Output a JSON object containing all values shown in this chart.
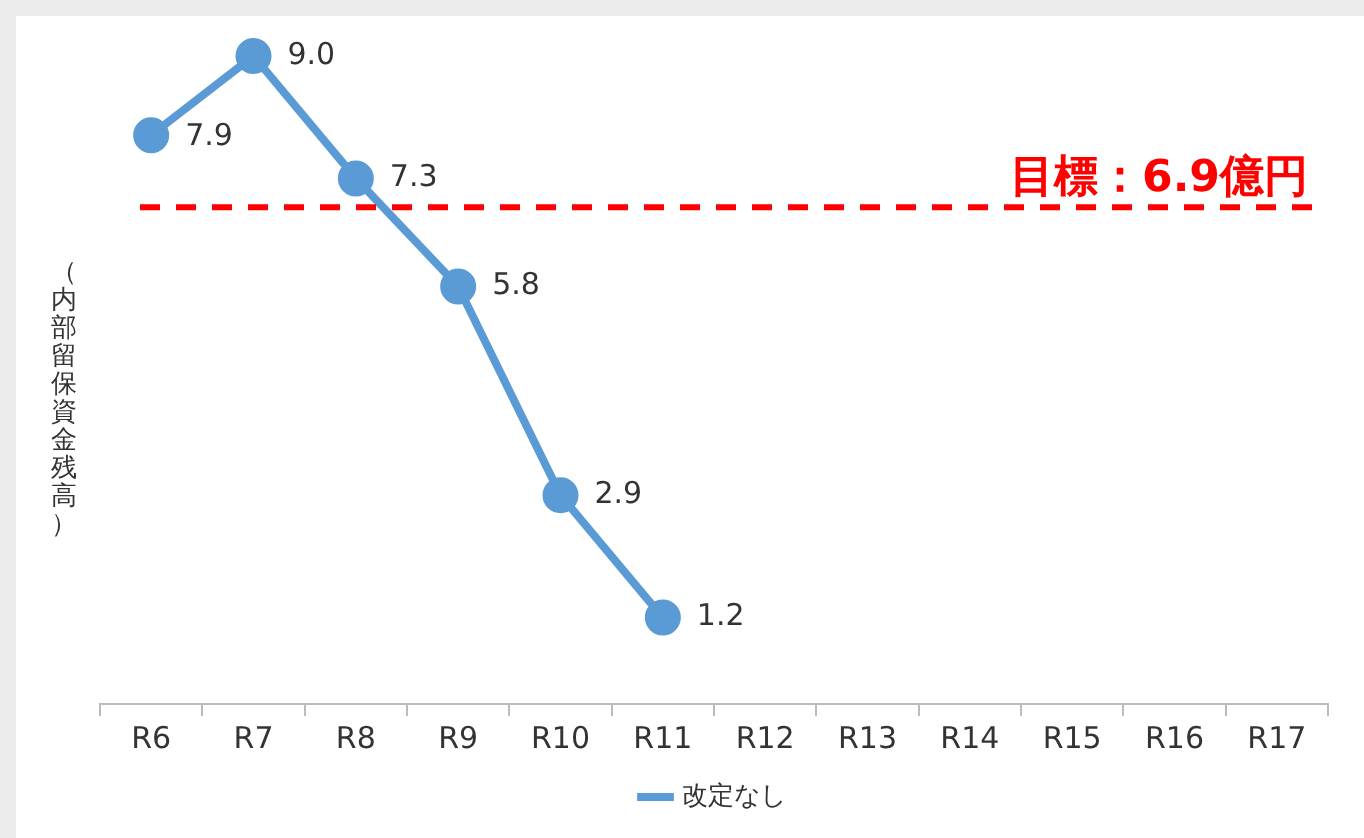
{
  "chart_data": {
    "type": "line",
    "ylabel": "（内部留保資金残高）",
    "categories": [
      "R6",
      "R7",
      "R8",
      "R9",
      "R10",
      "R11",
      "R12",
      "R13",
      "R14",
      "R15",
      "R16",
      "R17"
    ],
    "series": [
      {
        "name": "改定なし",
        "color": "#5b9bd5",
        "values": [
          7.9,
          9.0,
          7.3,
          5.8,
          2.9,
          1.2,
          null,
          null,
          null,
          null,
          null,
          null
        ],
        "value_labels": [
          "7.9",
          "9.0",
          "7.3",
          "5.8",
          "2.9",
          "1.2",
          null,
          null,
          null,
          null,
          null,
          null
        ]
      }
    ],
    "tick_labels": "x",
    "grid": false,
    "legend": "bottom",
    "marker": "circle",
    "line_style": "solid",
    "ref_lines": [
      {
        "axis": "y",
        "value": 6.9,
        "label": "目標：6.9億円",
        "color": "#ff0000",
        "line_style": "dashed"
      }
    ]
  }
}
